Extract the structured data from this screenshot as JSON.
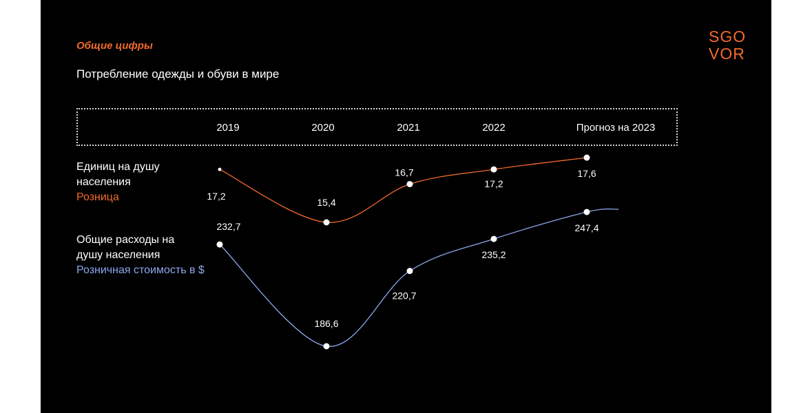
{
  "header": {
    "section_title": "Общие цифры",
    "subtitle": "Потребление одежды и обуви в мире"
  },
  "logo": {
    "line1": "SGO",
    "line2": "VOR",
    "color": "#f26a2e"
  },
  "rows": {
    "units": {
      "label_line1": "Единиц на душу",
      "label_line2": "населения",
      "label_accent": "Розница",
      "color": "#f26a2e"
    },
    "spend": {
      "label_line1": "Общие расходы на",
      "label_line2": "душу населения",
      "label_accent": "Розничная стоимость в $",
      "color": "#8ea8f0"
    }
  },
  "chart_data": {
    "type": "line",
    "categories": [
      "2019",
      "2020",
      "2021",
      "2022",
      "Прогноз на 2023"
    ],
    "series": [
      {
        "key": "units",
        "values": [
          17.2,
          15.4,
          16.7,
          17.2,
          17.6
        ],
        "labels": [
          "17,2",
          "15,4",
          "16,7",
          "17,2",
          "17,6"
        ],
        "color": "#f26a2e"
      },
      {
        "key": "spend",
        "values": [
          232.7,
          186.6,
          220.7,
          235.2,
          247.4
        ],
        "labels": [
          "232,7",
          "186,6",
          "220,7",
          "235,2",
          "247,4"
        ],
        "color": "#8ea8f0"
      }
    ],
    "grid": false,
    "legend": "none"
  }
}
